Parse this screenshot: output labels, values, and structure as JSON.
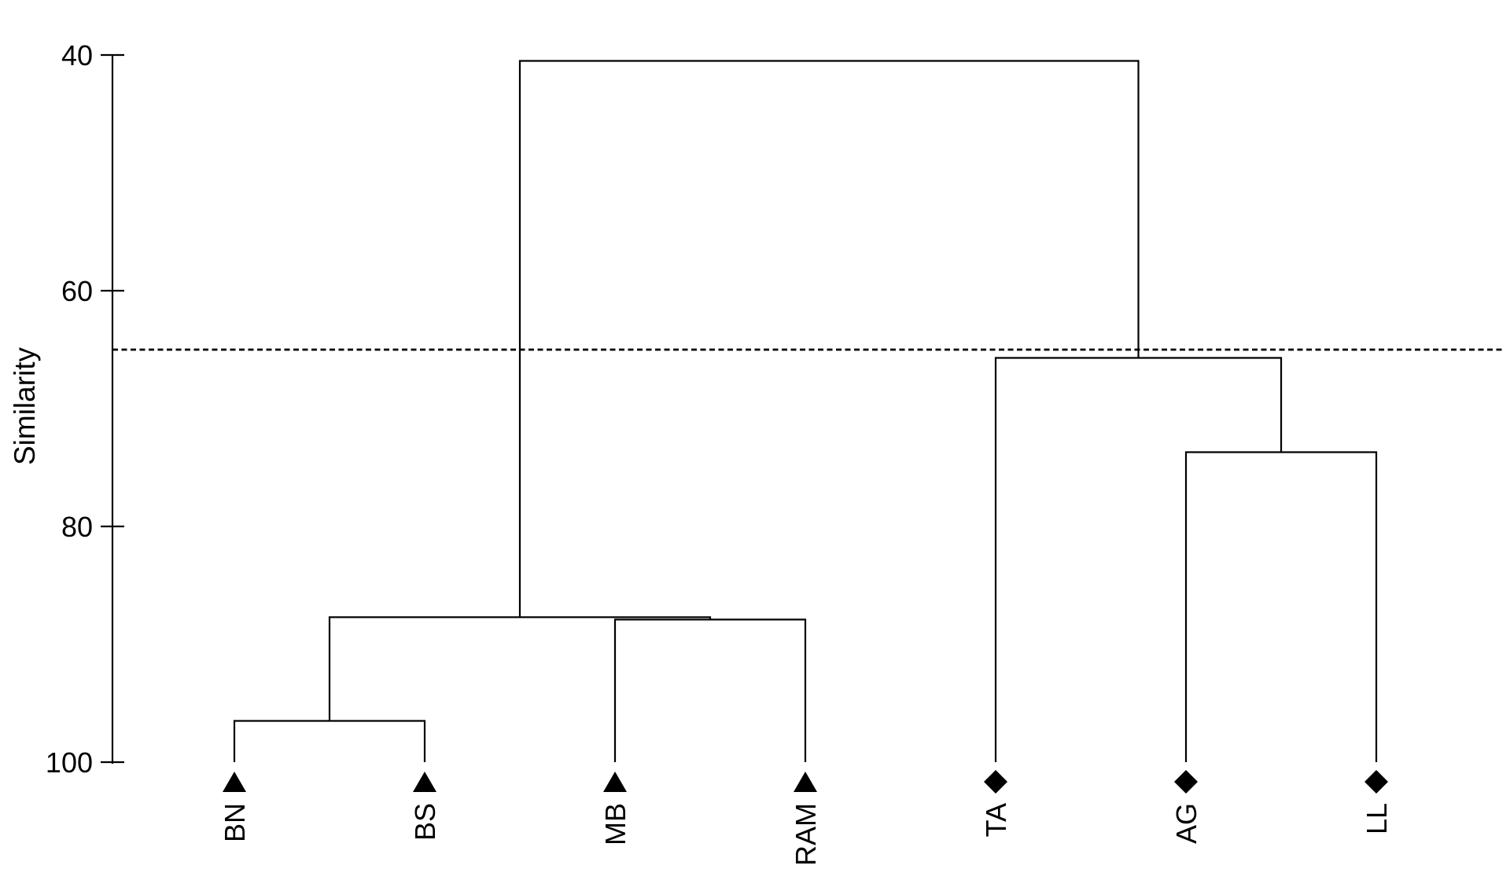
{
  "figure": {
    "background_color": "#ffffff",
    "ink_color": "#000000"
  },
  "chart_data": {
    "type": "dendrogram",
    "orientation": "vertical-top-root",
    "y_axis": {
      "label": "Similarity",
      "ticks": [
        40,
        60,
        80,
        100
      ],
      "min": 40,
      "max": 100,
      "inverted": true
    },
    "leaves": [
      {
        "label": "BN",
        "marker": "triangle"
      },
      {
        "label": "BS",
        "marker": "triangle"
      },
      {
        "label": "MB",
        "marker": "triangle"
      },
      {
        "label": "RAM",
        "marker": "triangle"
      },
      {
        "label": "TA",
        "marker": "diamond"
      },
      {
        "label": "AG",
        "marker": "diamond"
      },
      {
        "label": "LL",
        "marker": "diamond"
      }
    ],
    "merges": [
      {
        "id": "m1",
        "children": [
          "BN",
          "BS"
        ],
        "similarity": 96.5
      },
      {
        "id": "m2",
        "children": [
          "MB",
          "RAM"
        ],
        "similarity": 87.9
      },
      {
        "id": "m3",
        "children": [
          "m1",
          "m2"
        ],
        "similarity": 87.7
      },
      {
        "id": "m4",
        "children": [
          "AG",
          "LL"
        ],
        "similarity": 73.7
      },
      {
        "id": "m5",
        "children": [
          "TA",
          "m4"
        ],
        "similarity": 65.7
      },
      {
        "id": "m6",
        "children": [
          "m3",
          "m5"
        ],
        "similarity": 40.5
      }
    ],
    "cutoff_line": {
      "similarity": 65,
      "style": "dashed"
    },
    "legend": null,
    "grid": false
  }
}
